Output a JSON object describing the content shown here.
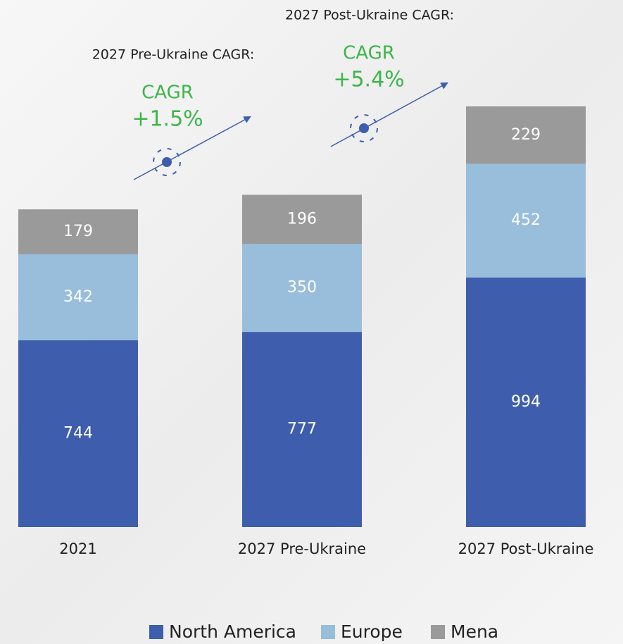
{
  "chart_data": {
    "type": "stacked_bar",
    "categories": [
      "2021",
      "2027 Pre-Ukraine",
      "2027 Post-Ukraine"
    ],
    "series": [
      {
        "name": "North America",
        "color": "#3e5ead",
        "values": [
          744,
          777,
          994
        ]
      },
      {
        "name": "Europe",
        "color": "#98bedb",
        "values": [
          342,
          350,
          452
        ]
      },
      {
        "name": "Mena",
        "color": "#9a9a9a",
        "values": [
          179,
          196,
          229
        ]
      }
    ],
    "annotations": [
      {
        "text": "2027 Pre-Ukraine CAGR:"
      },
      {
        "text": "CAGR"
      },
      {
        "text": "+1.5%"
      },
      {
        "text": "2027 Post-Ukraine CAGR:"
      },
      {
        "text": "CAGR"
      },
      {
        "text": "+5.4%"
      }
    ],
    "legend": "bottom"
  }
}
